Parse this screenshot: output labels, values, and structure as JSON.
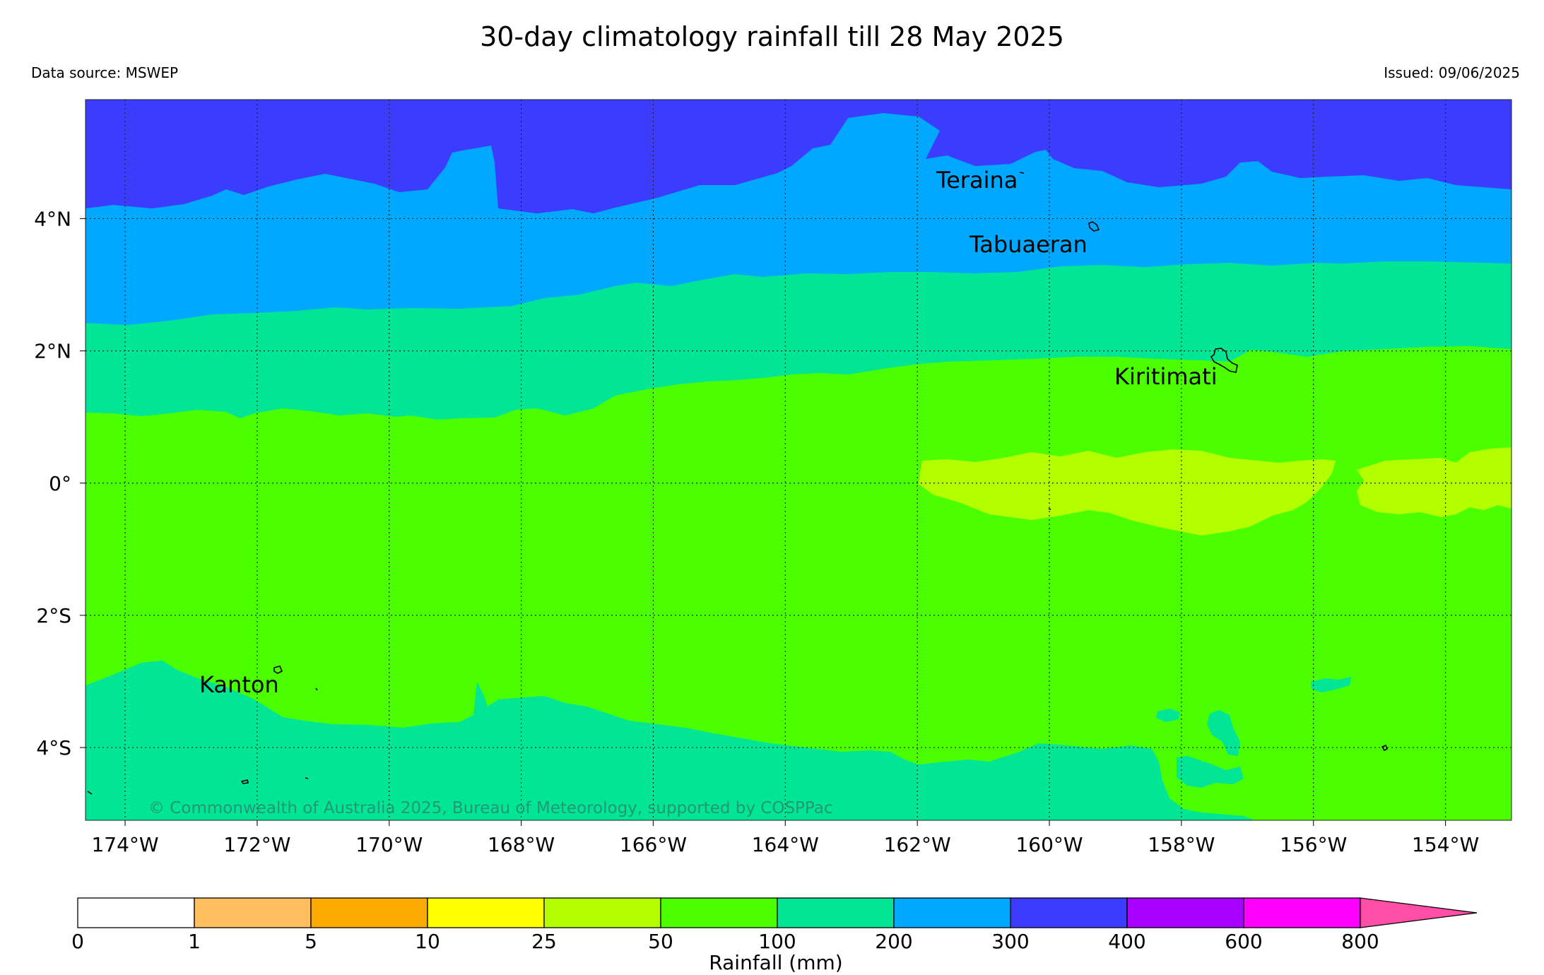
{
  "header": {
    "title": "30-day climatology rainfall till 28 May 2025",
    "source": "Data source: MSWEP",
    "issued": "Issued: 09/06/2025"
  },
  "map": {
    "lon_range": [
      -174.6,
      -153.0
    ],
    "lat_range": [
      -5.1,
      5.8
    ],
    "lon_ticks": [
      "174°W",
      "172°W",
      "170°W",
      "168°W",
      "166°W",
      "164°W",
      "162°W",
      "160°W",
      "158°W",
      "156°W",
      "154°W"
    ],
    "lat_ticks": [
      "4°N",
      "2°N",
      "0°",
      "2°S",
      "4°S"
    ],
    "islands": [
      "Teraina",
      "Tabuaeran",
      "Kiritimati",
      "Kanton"
    ],
    "copyright": "© Commonwealth of Australia 2025, Bureau of Meteorology, supported by COSPPac"
  },
  "legend": {
    "label": "Rainfall (mm)",
    "ticks": [
      "0",
      "1",
      "5",
      "10",
      "25",
      "50",
      "100",
      "200",
      "300",
      "400",
      "600",
      "800"
    ],
    "colors": [
      "#ffffff",
      "#ffbf60",
      "#ffaa00",
      "#ffff00",
      "#b3ff00",
      "#4cff00",
      "#00e696",
      "#00a8ff",
      "#3c3cff",
      "#aa00ff",
      "#ff00ff",
      "#ff4ea6"
    ]
  }
}
